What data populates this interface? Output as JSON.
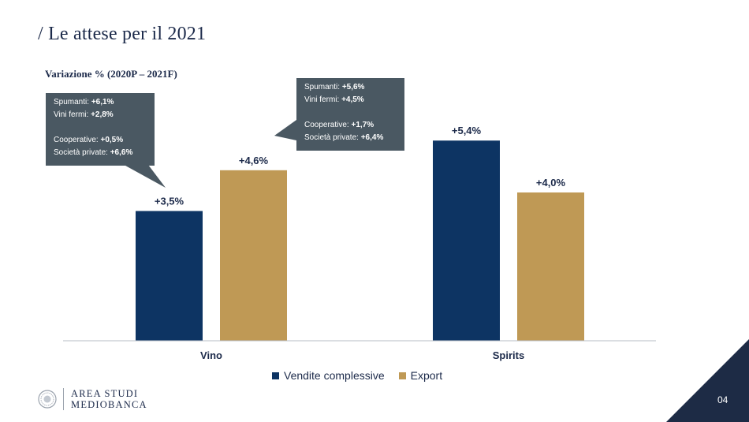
{
  "page": {
    "title": "/ Le attese per il 2021",
    "subtitle": "Variazione % (2020P – 2021F)",
    "page_number": "04",
    "logo_line1": "AREA STUDI",
    "logo_line2": "MEDIOBANCA"
  },
  "colors": {
    "navy": "#0d3463",
    "gold": "#bf9955",
    "callout_bg": "#4a5862",
    "corner": "#1d2b45"
  },
  "callouts": {
    "vino_vendite": {
      "lines": [
        {
          "label": "Spumanti: ",
          "value": "+6,1%"
        },
        {
          "label": "Vini fermi: ",
          "value": "+2,8%"
        },
        {
          "label": "",
          "value": ""
        },
        {
          "label": "Cooperative: ",
          "value": "+0,5%"
        },
        {
          "label": "Società private: ",
          "value": "+6,6%"
        }
      ]
    },
    "vino_export": {
      "lines": [
        {
          "label": "Spumanti: ",
          "value": "+5,6%"
        },
        {
          "label": "Vini fermi: ",
          "value": "+4,5%"
        },
        {
          "label": "",
          "value": ""
        },
        {
          "label": "Cooperative: ",
          "value": "+1,7%"
        },
        {
          "label": "Società private: ",
          "value": "+6,4%"
        }
      ]
    }
  },
  "chart_data": {
    "type": "bar",
    "title": "Variazione % (2020P – 2021F)",
    "categories": [
      "Vino",
      "Spirits"
    ],
    "series": [
      {
        "name": "Vendite complessive",
        "values": [
          3.5,
          5.4
        ],
        "labels": [
          "+3,5%",
          "+5,4%"
        ],
        "color": "#0d3463"
      },
      {
        "name": "Export",
        "values": [
          4.6,
          4.0
        ],
        "labels": [
          "+4,6%",
          "+4,0%"
        ],
        "color": "#bf9955"
      }
    ],
    "ylim": [
      0,
      6
    ],
    "grid": false,
    "legend": "bottom-center"
  }
}
